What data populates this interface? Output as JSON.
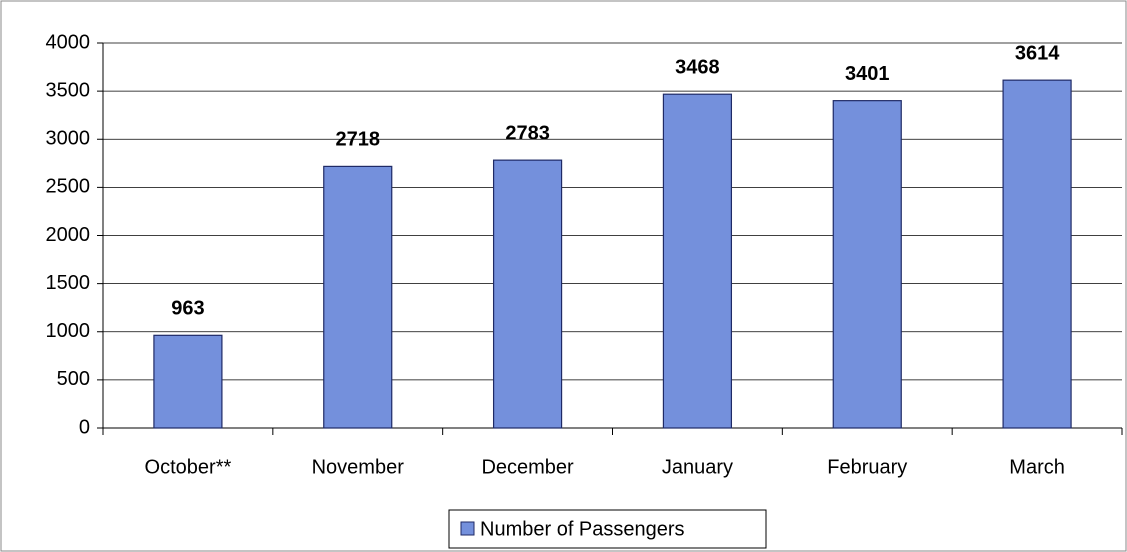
{
  "chart_data": {
    "type": "bar",
    "categories": [
      "October**",
      "November",
      "December",
      "January",
      "February",
      "March"
    ],
    "series": [
      {
        "name": "Number of Passengers",
        "color": "#7490dc",
        "values": [
          963,
          2718,
          2783,
          3468,
          3401,
          3614
        ]
      }
    ],
    "ylim": [
      0,
      4000
    ],
    "yticks": [
      0,
      500,
      1000,
      1500,
      2000,
      2500,
      3000,
      3500,
      4000
    ],
    "grid": true,
    "legend": "bottom"
  }
}
